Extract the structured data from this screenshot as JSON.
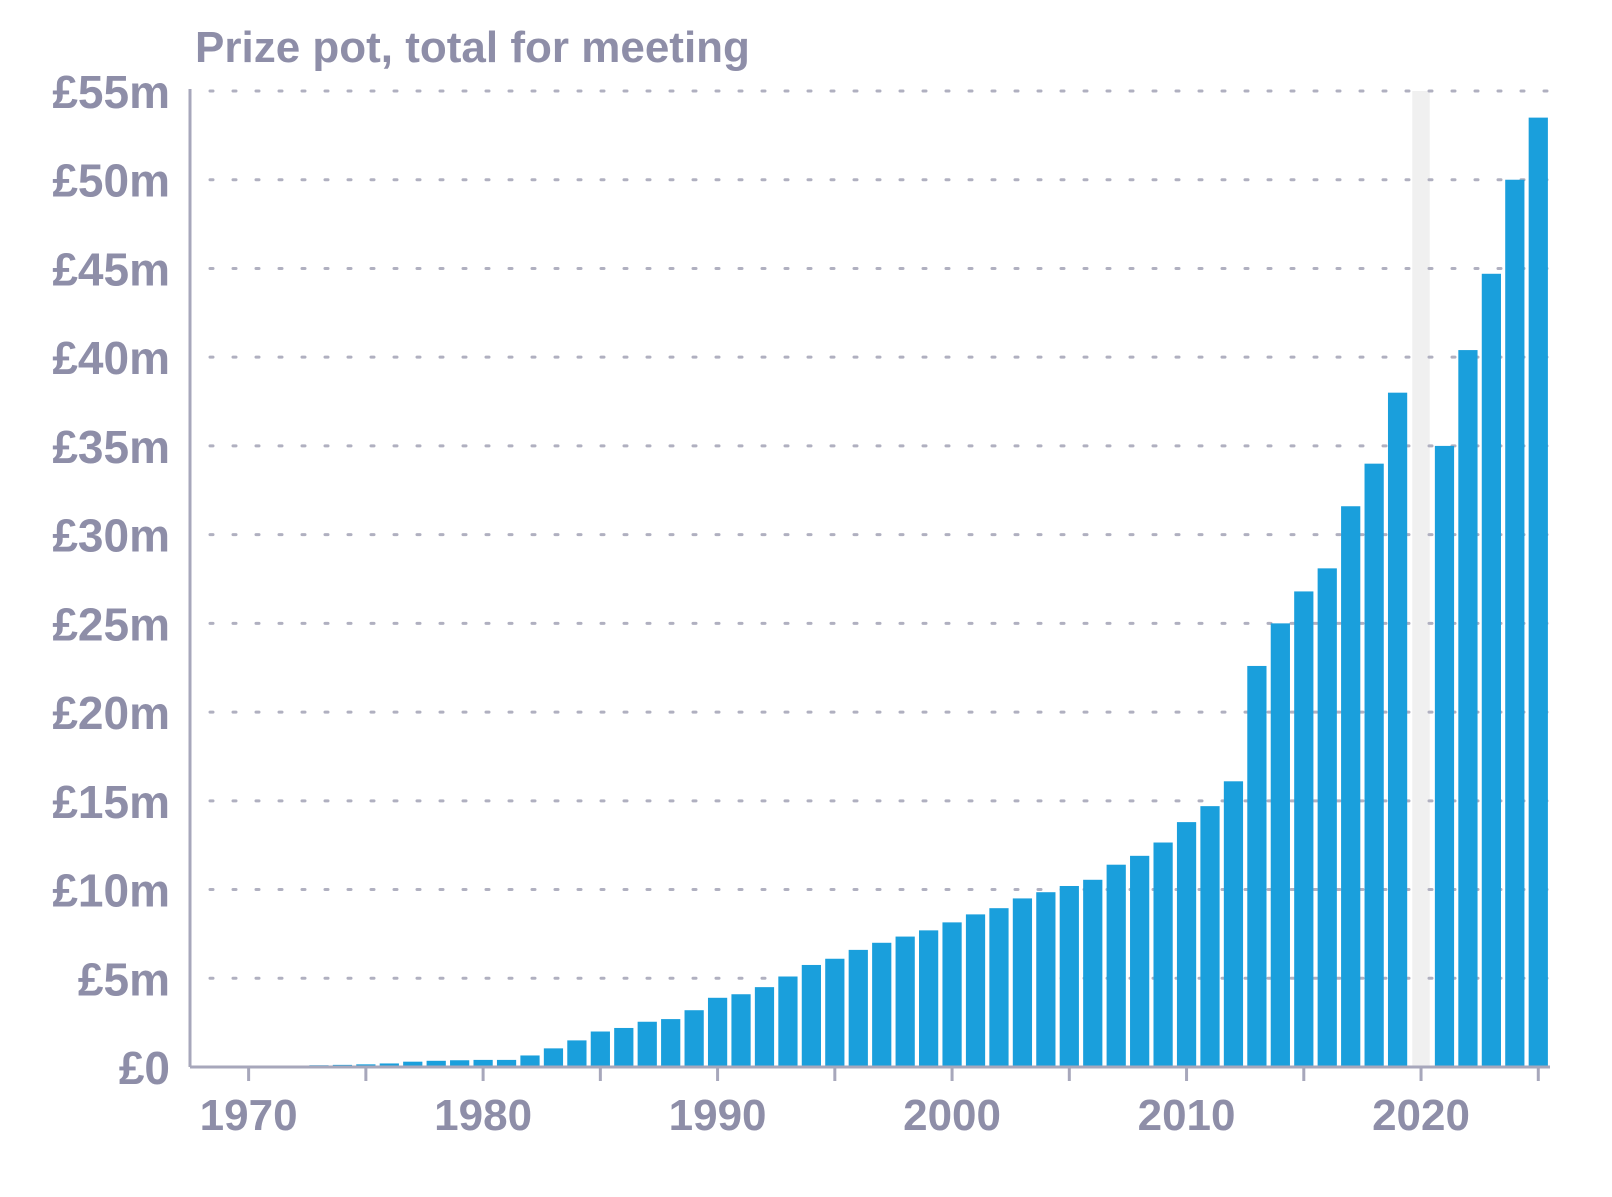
{
  "colors": {
    "bar": "#1a9fdc",
    "axis_text": "#8e8ea8",
    "grid": "#b0b0c0",
    "axis_line": "#a7a7bb",
    "gap_shade": "#f0f0f0"
  },
  "chart_data": {
    "type": "bar",
    "title": "Prize pot, total for meeting",
    "xlabel": "",
    "ylabel": "",
    "ylim": [
      0,
      55
    ],
    "yunit": "£m",
    "ytick_values": [
      0,
      5,
      10,
      15,
      20,
      25,
      30,
      35,
      40,
      45,
      50,
      55
    ],
    "ytick_labels": [
      "£0",
      "£5m",
      "£10m",
      "£15m",
      "£20m",
      "£25m",
      "£30m",
      "£35m",
      "£40m",
      "£45m",
      "£50m",
      "£55m"
    ],
    "xlim": [
      1967.5,
      2025.5
    ],
    "xtick_values": [
      1970,
      1980,
      1990,
      2000,
      2010,
      2020
    ],
    "xtick_labels": [
      "1970",
      "1980",
      "1990",
      "2000",
      "2010",
      "2020"
    ],
    "minor_xticks": [
      1975,
      1985,
      1995,
      2005,
      2015,
      2025
    ],
    "grid": true,
    "shaded_years": [
      2020
    ],
    "categories": [
      1968,
      1969,
      1970,
      1971,
      1972,
      1973,
      1974,
      1975,
      1976,
      1977,
      1978,
      1979,
      1980,
      1981,
      1982,
      1983,
      1984,
      1985,
      1986,
      1987,
      1988,
      1989,
      1990,
      1991,
      1992,
      1993,
      1994,
      1995,
      1996,
      1997,
      1998,
      1999,
      2000,
      2001,
      2002,
      2003,
      2004,
      2005,
      2006,
      2007,
      2008,
      2009,
      2010,
      2011,
      2012,
      2013,
      2014,
      2015,
      2016,
      2017,
      2018,
      2019,
      2021,
      2022,
      2023,
      2024,
      2025
    ],
    "values": [
      0.05,
      0.05,
      0.06,
      0.07,
      0.08,
      0.1,
      0.12,
      0.15,
      0.2,
      0.3,
      0.35,
      0.38,
      0.4,
      0.4,
      0.65,
      1.05,
      1.5,
      2.0,
      2.2,
      2.55,
      2.7,
      3.2,
      3.9,
      4.1,
      4.5,
      5.1,
      5.75,
      6.1,
      6.6,
      7.0,
      7.35,
      7.7,
      8.15,
      8.6,
      8.95,
      9.5,
      9.85,
      10.2,
      10.55,
      11.4,
      11.9,
      12.65,
      13.8,
      14.7,
      16.1,
      22.6,
      25.0,
      26.8,
      28.1,
      31.6,
      34.0,
      38.0,
      35.0,
      40.4,
      44.7,
      50.0,
      53.5
    ]
  }
}
